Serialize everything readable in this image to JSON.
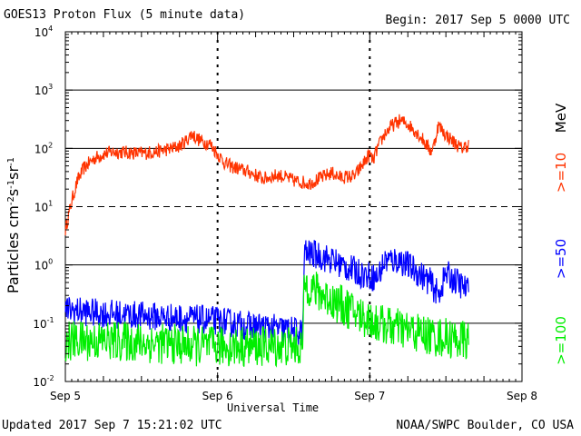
{
  "header": {
    "title": "GOES13 Proton Flux (5 minute data)",
    "begin": "Begin: 2017 Sep 5 0000 UTC"
  },
  "footer": {
    "updated": "Updated 2017 Sep  7 15:21:02 UTC",
    "credit": "NOAA/SWPC Boulder, CO USA"
  },
  "chart_data": {
    "type": "line",
    "title": "GOES13 Proton Flux (5 minute data)",
    "xlabel": "Universal Time",
    "ylabel": "Particles cm⁻²s⁻¹sr⁻¹",
    "y_scale": "log",
    "ylim": [
      0.01,
      10000
    ],
    "xlim_days": [
      0,
      3
    ],
    "x_tick_labels": [
      "Sep 5",
      "Sep 6",
      "Sep 7",
      "Sep 8"
    ],
    "y_tick_labels": [
      {
        "base": "10",
        "exp": "4"
      },
      {
        "base": "10",
        "exp": "3"
      },
      {
        "base": "10",
        "exp": "2"
      },
      {
        "base": "10",
        "exp": "1"
      },
      {
        "base": "10",
        "exp": "0"
      },
      {
        "base": "10",
        "exp": "-1"
      },
      {
        "base": "10",
        "exp": "-2"
      }
    ],
    "legend": {
      "unit": "MeV",
      "placement": "right"
    },
    "colors": {
      "p10": "#ff3300",
      "p50": "#0000ff",
      "p100": "#00ee00"
    },
    "series": [
      {
        "name": ">=10",
        "key": "p10",
        "points": [
          [
            0.0,
            4
          ],
          [
            0.02,
            7
          ],
          [
            0.05,
            15
          ],
          [
            0.08,
            28
          ],
          [
            0.12,
            45
          ],
          [
            0.18,
            65
          ],
          [
            0.25,
            80
          ],
          [
            0.32,
            88
          ],
          [
            0.4,
            85
          ],
          [
            0.5,
            82
          ],
          [
            0.6,
            88
          ],
          [
            0.7,
            100
          ],
          [
            0.75,
            110
          ],
          [
            0.8,
            140
          ],
          [
            0.83,
            180
          ],
          [
            0.86,
            150
          ],
          [
            0.9,
            130
          ],
          [
            0.95,
            120
          ],
          [
            1.0,
            80
          ],
          [
            1.05,
            55
          ],
          [
            1.1,
            48
          ],
          [
            1.2,
            40
          ],
          [
            1.3,
            30
          ],
          [
            1.4,
            35
          ],
          [
            1.5,
            28
          ],
          [
            1.6,
            25
          ],
          [
            1.7,
            33
          ],
          [
            1.75,
            38
          ],
          [
            1.8,
            32
          ],
          [
            1.9,
            33
          ],
          [
            2.0,
            80
          ],
          [
            2.02,
            60
          ],
          [
            2.05,
            100
          ],
          [
            2.1,
            180
          ],
          [
            2.15,
            250
          ],
          [
            2.2,
            300
          ],
          [
            2.25,
            260
          ],
          [
            2.3,
            200
          ],
          [
            2.35,
            140
          ],
          [
            2.4,
            90
          ],
          [
            2.42,
            110
          ],
          [
            2.45,
            250
          ],
          [
            2.5,
            170
          ],
          [
            2.55,
            130
          ],
          [
            2.6,
            100
          ],
          [
            2.65,
            115
          ]
        ],
        "noise": 0.12
      },
      {
        "name": ">=50",
        "key": "p50",
        "points": [
          [
            0.0,
            0.17
          ],
          [
            0.2,
            0.15
          ],
          [
            0.4,
            0.14
          ],
          [
            0.6,
            0.13
          ],
          [
            0.8,
            0.12
          ],
          [
            1.0,
            0.11
          ],
          [
            1.2,
            0.09
          ],
          [
            1.4,
            0.08
          ],
          [
            1.56,
            0.07
          ],
          [
            1.57,
            1.6
          ],
          [
            1.65,
            1.5
          ],
          [
            1.75,
            1.2
          ],
          [
            1.85,
            0.9
          ],
          [
            1.95,
            0.7
          ],
          [
            2.05,
            0.6
          ],
          [
            2.1,
            1.2
          ],
          [
            2.2,
            1.2
          ],
          [
            2.3,
            0.8
          ],
          [
            2.4,
            0.5
          ],
          [
            2.45,
            0.3
          ],
          [
            2.5,
            0.7
          ],
          [
            2.6,
            0.45
          ],
          [
            2.65,
            0.35
          ]
        ],
        "noise": 0.25
      },
      {
        "name": ">=100",
        "key": "p100",
        "points": [
          [
            0.0,
            0.05
          ],
          [
            0.3,
            0.05
          ],
          [
            0.6,
            0.045
          ],
          [
            0.9,
            0.04
          ],
          [
            1.2,
            0.04
          ],
          [
            1.56,
            0.04
          ],
          [
            1.57,
            0.5
          ],
          [
            1.65,
            0.35
          ],
          [
            1.75,
            0.25
          ],
          [
            1.85,
            0.18
          ],
          [
            1.95,
            0.13
          ],
          [
            2.05,
            0.1
          ],
          [
            2.2,
            0.08
          ],
          [
            2.4,
            0.06
          ],
          [
            2.65,
            0.05
          ]
        ],
        "noise": 0.35
      }
    ]
  }
}
